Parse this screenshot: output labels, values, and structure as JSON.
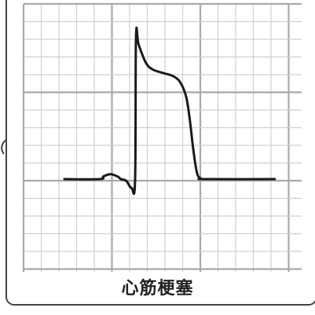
{
  "colors": {
    "grid_minor": "#cfcfd6",
    "grid_major": "#a8a8b2",
    "trace": "#1a1a1a",
    "border": "#444444",
    "caption": "#222222"
  },
  "trace_points": [
    [
      0.0,
      0.0
    ],
    [
      2.0,
      0.0
    ],
    [
      2.2,
      0.15
    ],
    [
      2.6,
      0.28
    ],
    [
      3.0,
      0.15
    ],
    [
      3.2,
      0.0
    ],
    [
      3.5,
      -0.1
    ],
    [
      3.8,
      -0.5
    ],
    [
      4.0,
      0.0
    ],
    [
      4.05,
      8.0
    ],
    [
      4.2,
      7.6
    ],
    [
      4.6,
      6.6
    ],
    [
      5.0,
      6.2
    ],
    [
      5.6,
      6.0
    ],
    [
      6.2,
      5.8
    ],
    [
      6.6,
      5.4
    ],
    [
      6.9,
      4.6
    ],
    [
      7.1,
      3.3
    ],
    [
      7.3,
      1.6
    ],
    [
      7.5,
      0.35
    ],
    [
      7.7,
      0.05
    ],
    [
      8.0,
      0.0
    ],
    [
      11.9,
      0.0
    ]
  ],
  "caption": {
    "text": "心筋梗塞"
  }
}
